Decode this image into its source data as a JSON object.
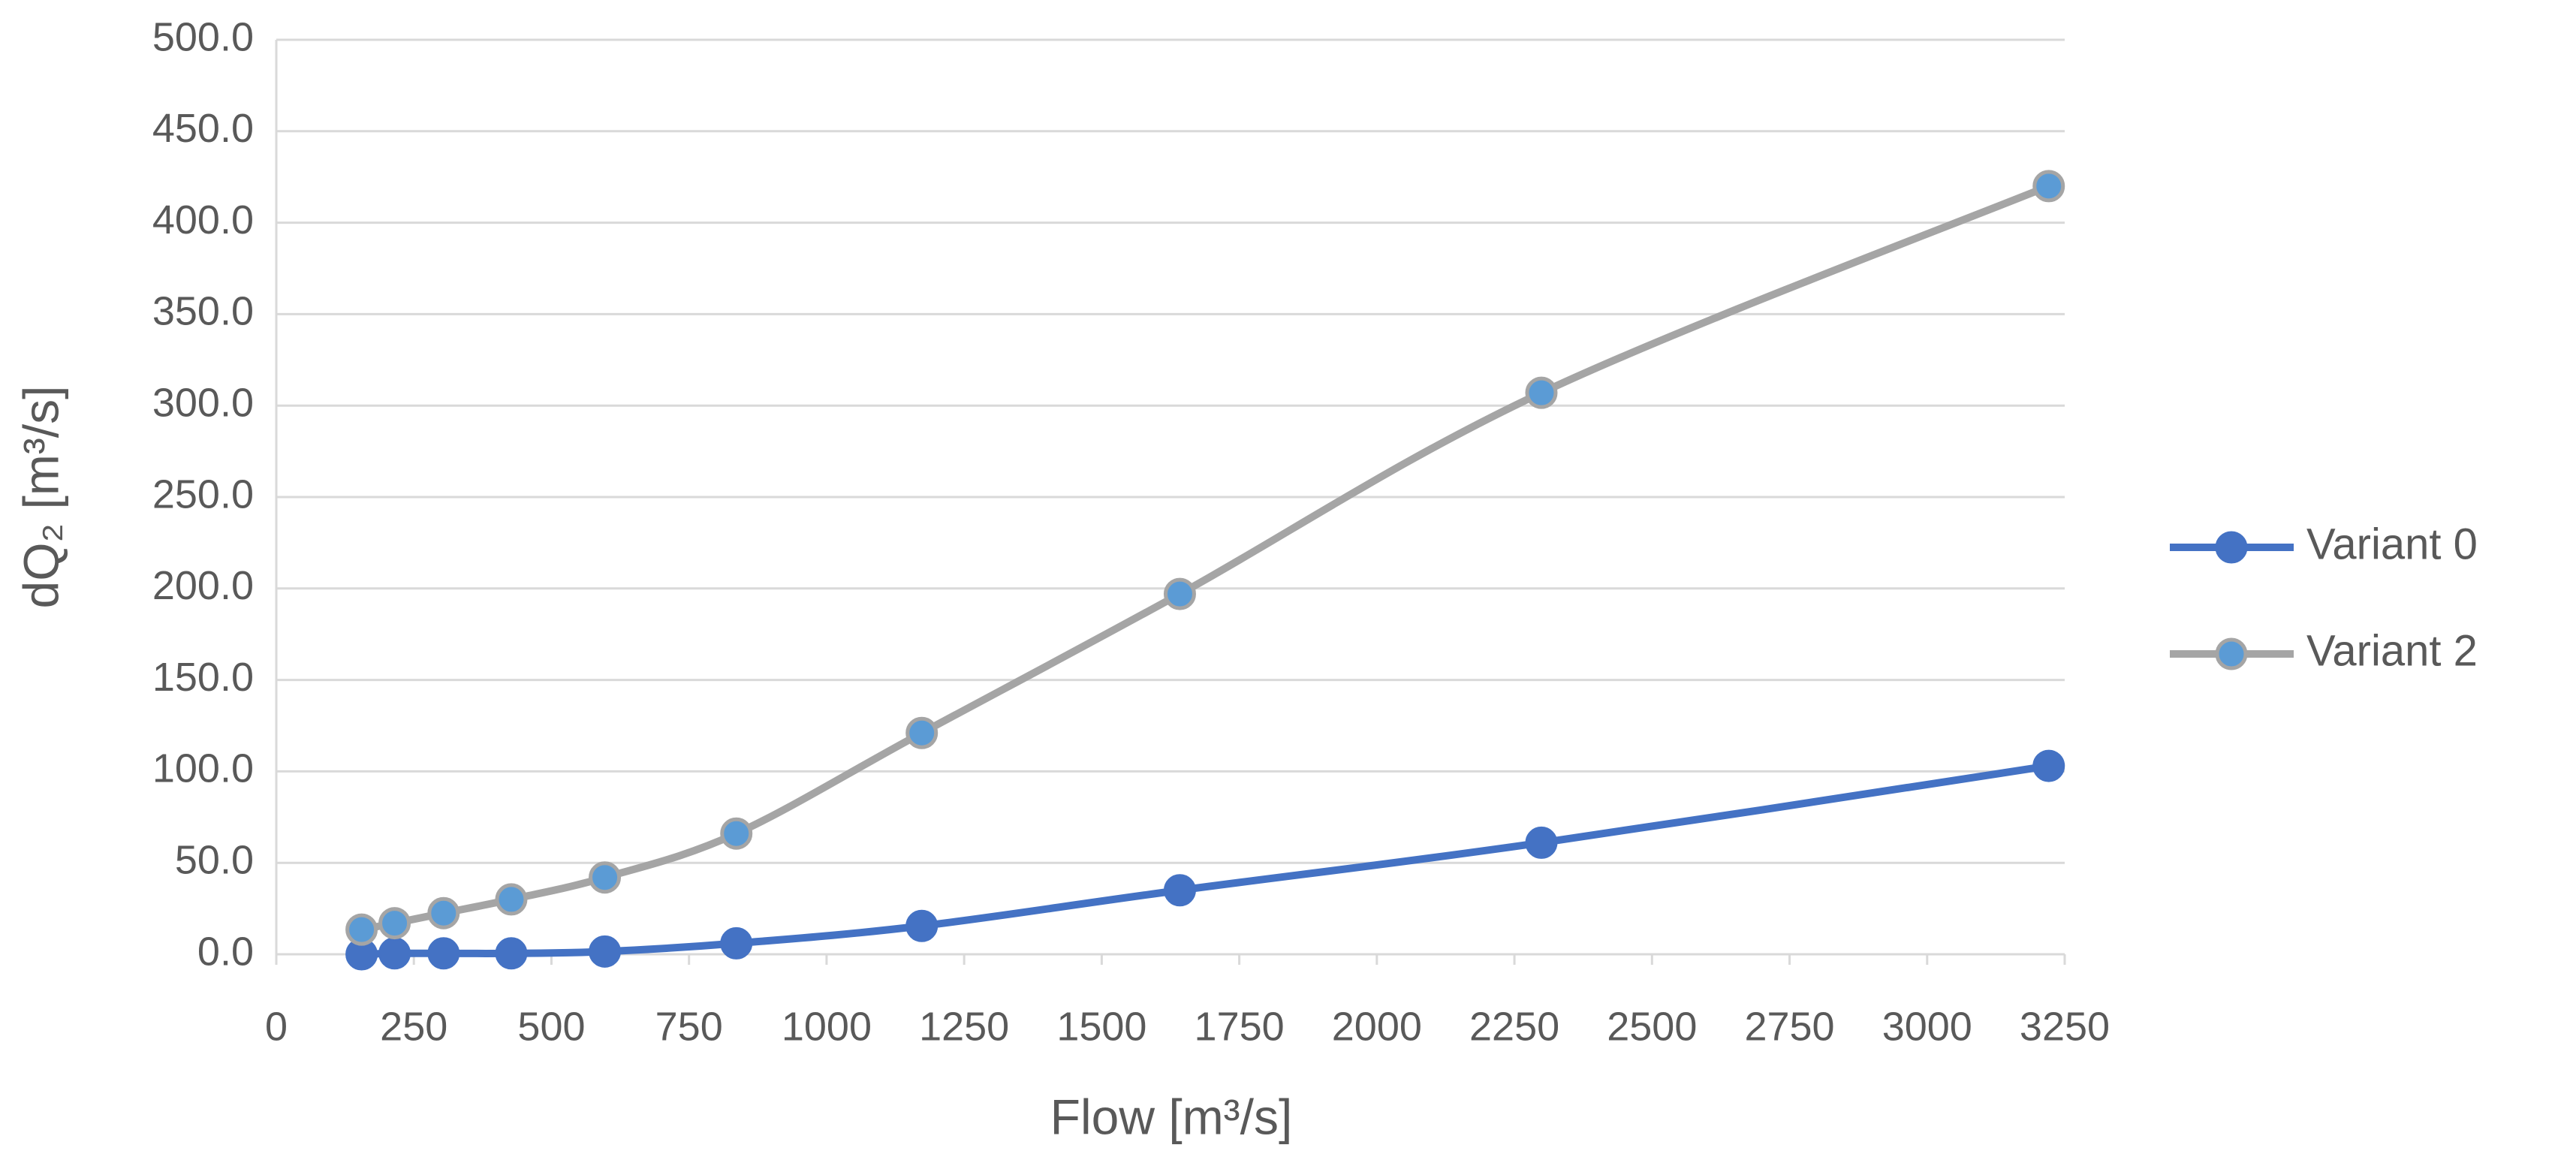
{
  "chart_data": {
    "type": "line",
    "smooth": true,
    "x_label": "Flow  [m³/s]",
    "y_label": "dQ₂ [m³/s]",
    "xlim": [
      0,
      3250
    ],
    "xticks": [
      0,
      250,
      500,
      750,
      1000,
      1250,
      1500,
      1750,
      2000,
      2250,
      2500,
      2750,
      3000,
      3250
    ],
    "ylim": [
      0,
      500
    ],
    "yticks": [
      {
        "value": 0,
        "label": "0.0"
      },
      {
        "value": 50,
        "label": "50.0"
      },
      {
        "value": 100,
        "label": "100.0"
      },
      {
        "value": 150,
        "label": "150.0"
      },
      {
        "value": 200,
        "label": "200.0"
      },
      {
        "value": 250,
        "label": "250.0"
      },
      {
        "value": 300,
        "label": "300.0"
      },
      {
        "value": 350,
        "label": "350.0"
      },
      {
        "value": 400,
        "label": "400.0"
      },
      {
        "value": 450,
        "label": "450.0"
      },
      {
        "value": 500,
        "label": "500.0"
      }
    ],
    "grid": true,
    "legend": "right",
    "series": [
      {
        "name": "Variant 0",
        "color": "#4472c4",
        "marker_color": "#4472c4",
        "x": [
          155,
          215,
          304,
          427,
          597,
          836,
          1173,
          1642,
          2299,
          3221
        ],
        "values": [
          0,
          0.5,
          0.5,
          0.5,
          1.5,
          6,
          15.5,
          35,
          61,
          103
        ]
      },
      {
        "name": "Variant 2",
        "color": "#a5a5a5",
        "marker_color": "#5b9bd5",
        "x": [
          155,
          215,
          304,
          427,
          597,
          836,
          1173,
          1642,
          2299,
          3221
        ],
        "values": [
          13.5,
          17,
          22.5,
          30,
          42,
          66,
          121,
          197,
          307,
          420
        ]
      }
    ]
  }
}
